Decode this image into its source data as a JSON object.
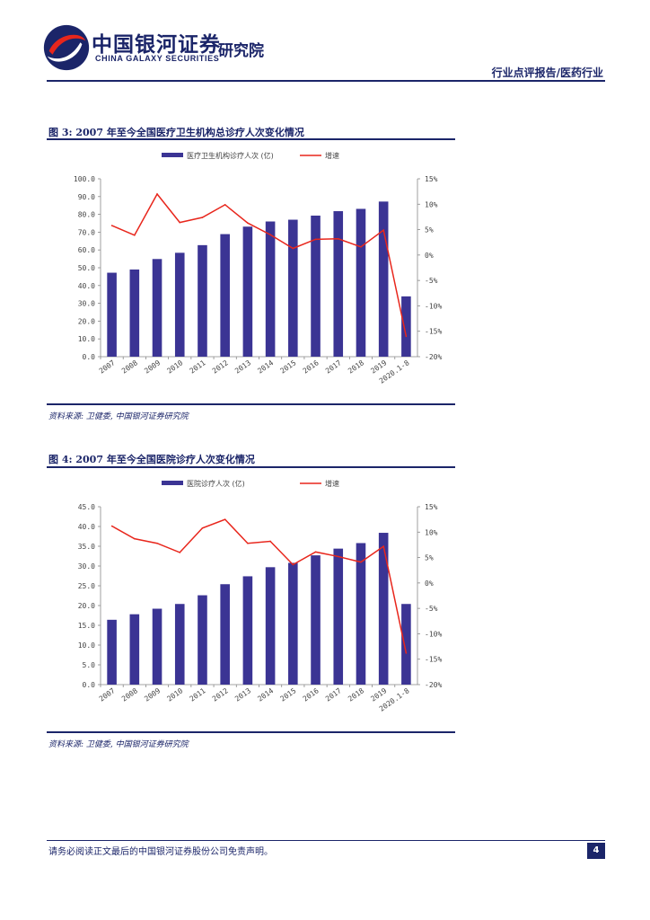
{
  "header": {
    "brand_cn": "中国银河证券",
    "brand_en": "CHINA GALAXY SECURITIES",
    "institute": "研究院",
    "report_type": "行业点评报告/医药行业"
  },
  "figures": [
    {
      "title": "图 3: 2007 年至今全国医疗卫生机构总诊疗人次变化情况",
      "source": "资料来源: 卫健委, 中国银河证券研究院"
    },
    {
      "title": "图 4: 2007 年至今全国医院诊疗人次变化情况",
      "source": "资料来源: 卫健委, 中国银河证券研究院"
    }
  ],
  "chart_data": [
    {
      "type": "bar",
      "categories": [
        "2007",
        "2008",
        "2009",
        "2010",
        "2011",
        "2012",
        "2013",
        "2014",
        "2015",
        "2016",
        "2017",
        "2018",
        "2019",
        "2020.1-8"
      ],
      "series": [
        {
          "name": "医疗卫生机构诊疗人次 (亿)",
          "type": "bar",
          "axis": "left",
          "color": "#3b3494",
          "values": [
            47.2,
            49.0,
            54.9,
            58.4,
            62.7,
            68.9,
            73.1,
            76.0,
            77.0,
            79.3,
            81.8,
            83.1,
            87.2,
            33.9
          ]
        },
        {
          "name": "增速",
          "type": "line",
          "axis": "right",
          "color": "#e8261c",
          "values": [
            5.8,
            3.9,
            12.0,
            6.4,
            7.4,
            9.9,
            6.3,
            4.0,
            1.3,
            3.1,
            3.2,
            1.6,
            4.9,
            -16.0
          ]
        }
      ],
      "y_left": {
        "min": 0,
        "max": 100,
        "step": 10,
        "ticks": [
          "0.0",
          "10.0",
          "20.0",
          "30.0",
          "40.0",
          "50.0",
          "60.0",
          "70.0",
          "80.0",
          "90.0",
          "100.0"
        ]
      },
      "y_right": {
        "min": -20,
        "max": 15,
        "step": 5,
        "ticks": [
          "-20%",
          "-15%",
          "-10%",
          "-5%",
          "0%",
          "5%",
          "10%",
          "15%"
        ]
      },
      "legend_position": "top"
    },
    {
      "type": "bar",
      "categories": [
        "2007",
        "2008",
        "2009",
        "2010",
        "2011",
        "2012",
        "2013",
        "2014",
        "2015",
        "2016",
        "2017",
        "2018",
        "2019",
        "2020.1-8"
      ],
      "series": [
        {
          "name": "医院诊疗人次 (亿)",
          "type": "bar",
          "axis": "left",
          "color": "#3b3494",
          "values": [
            16.4,
            17.8,
            19.2,
            20.4,
            22.6,
            25.4,
            27.4,
            29.7,
            30.8,
            32.7,
            34.4,
            35.8,
            38.4,
            20.4
          ]
        },
        {
          "name": "增速",
          "type": "line",
          "axis": "right",
          "color": "#e8261c",
          "values": [
            11.2,
            8.7,
            7.8,
            6.0,
            10.8,
            12.5,
            7.8,
            8.2,
            3.6,
            6.1,
            5.2,
            4.1,
            7.2,
            -13.8
          ]
        }
      ],
      "y_left": {
        "min": 0,
        "max": 45,
        "step": 5,
        "ticks": [
          "0.0",
          "5.0",
          "10.0",
          "15.0",
          "20.0",
          "25.0",
          "30.0",
          "35.0",
          "40.0",
          "45.0"
        ]
      },
      "y_right": {
        "min": -20,
        "max": 15,
        "step": 5,
        "ticks": [
          "-20%",
          "-15%",
          "-10%",
          "-5%",
          "0%",
          "5%",
          "10%",
          "15%"
        ]
      },
      "legend_position": "top"
    }
  ],
  "footer": {
    "disclaimer": "请务必阅读正文最后的中国银河证券股份公司免责声明。",
    "page_number": "4"
  }
}
